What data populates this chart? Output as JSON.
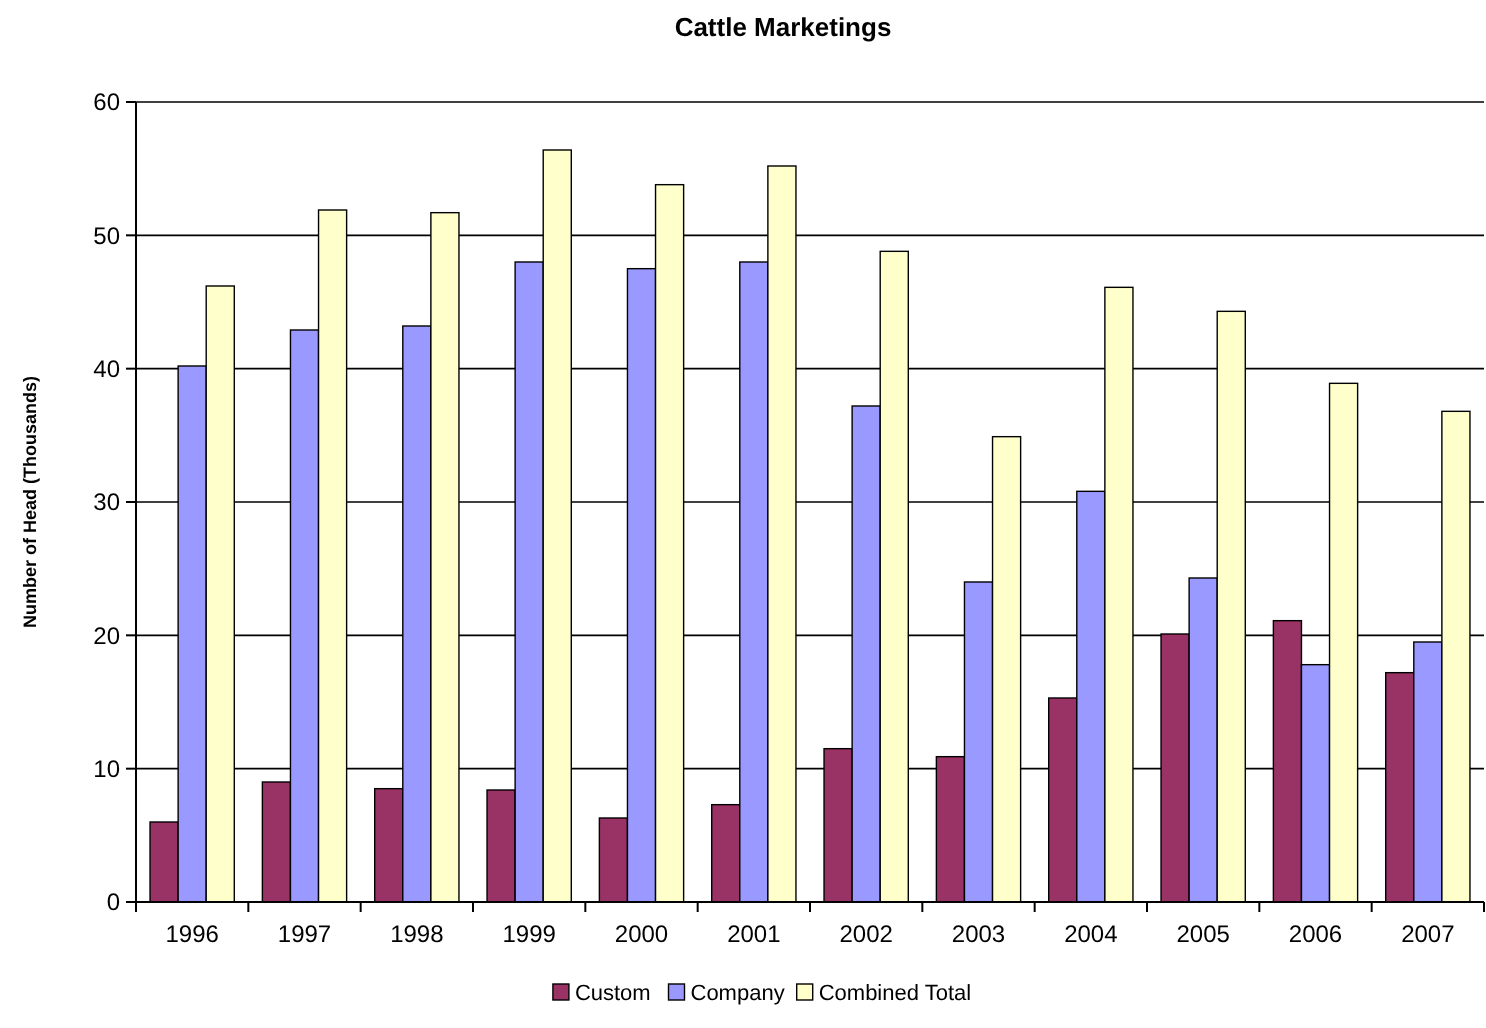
{
  "chart_data": {
    "type": "bar",
    "title": "Cattle Marketings",
    "ylabel": "Number of Head (Thousands)",
    "categories": [
      "1996",
      "1997",
      "1998",
      "1999",
      "2000",
      "2001",
      "2002",
      "2003",
      "2004",
      "2005",
      "2006",
      "2007"
    ],
    "series": [
      {
        "name": "Custom",
        "color": "#993366",
        "values": [
          6.0,
          9.0,
          8.5,
          8.4,
          6.3,
          7.3,
          11.5,
          10.9,
          15.3,
          20.1,
          21.1,
          17.2
        ]
      },
      {
        "name": "Company",
        "color": "#9999ff",
        "values": [
          40.2,
          42.9,
          43.2,
          48.0,
          47.5,
          48.0,
          37.2,
          24.0,
          30.8,
          24.3,
          17.8,
          19.5
        ]
      },
      {
        "name": "Combined Total",
        "color": "#ffffcc",
        "values": [
          46.2,
          51.9,
          51.7,
          56.4,
          53.8,
          55.2,
          48.8,
          34.9,
          46.1,
          44.3,
          38.9,
          36.8
        ]
      }
    ],
    "ylim": [
      0,
      60
    ],
    "yticks": [
      0,
      10,
      20,
      30,
      40,
      50,
      60
    ],
    "grid": "y",
    "legend": "bottom"
  }
}
